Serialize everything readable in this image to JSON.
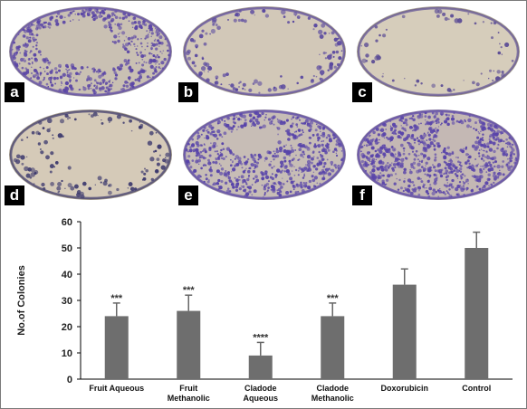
{
  "panels": [
    {
      "label": "a",
      "dish": "#c9c0b3",
      "rim": "#9c93a2",
      "stain": "#5b46a6",
      "density": 0.8,
      "clear": [
        [
          0.42,
          0.38,
          0.22,
          0.24
        ],
        [
          0.6,
          0.52,
          0.12,
          0.14
        ]
      ]
    },
    {
      "label": "b",
      "dish": "#d2c8b8",
      "rim": "#a79e93",
      "stain": "#5a49a0",
      "density": 0.35,
      "clear": [
        [
          0.5,
          0.45,
          0.34,
          0.3
        ]
      ]
    },
    {
      "label": "c",
      "dish": "#d6cdbb",
      "rim": "#aaa292",
      "stain": "#5d4e96",
      "density": 0.18,
      "clear": [
        [
          0.45,
          0.45,
          0.32,
          0.3
        ]
      ]
    },
    {
      "label": "d",
      "dish": "#d5cab8",
      "rim": "#a59c8c",
      "stain": "#3d3a6e",
      "density": 0.3,
      "clear": [
        [
          0.62,
          0.42,
          0.3,
          0.3
        ]
      ]
    },
    {
      "label": "e",
      "dish": "#c7bdb6",
      "rim": "#958aa4",
      "stain": "#5844aa",
      "density": 0.85,
      "clear": [
        [
          0.44,
          0.34,
          0.16,
          0.14
        ]
      ]
    },
    {
      "label": "f",
      "dish": "#c4b8b4",
      "rim": "#8f82a4",
      "stain": "#5a45aa",
      "density": 0.92,
      "clear": [
        [
          0.62,
          0.3,
          0.12,
          0.12
        ]
      ]
    }
  ],
  "chart_data": {
    "type": "bar",
    "categories": [
      [
        "Fruit Aqueous"
      ],
      [
        "Fruit",
        "Methanolic"
      ],
      [
        "Cladode",
        "Aqueous"
      ],
      [
        "Cladode",
        "Methanolic"
      ],
      [
        "Doxorubicin"
      ],
      [
        "Control"
      ]
    ],
    "values": [
      24,
      26,
      9,
      24,
      36,
      50
    ],
    "errors": [
      5,
      6,
      5,
      5,
      6,
      6
    ],
    "annotations": [
      "***",
      "***",
      "****",
      "***",
      "",
      ""
    ],
    "ylabel": "No.of Colonies",
    "ylim": [
      0,
      60
    ],
    "yticks": [
      0,
      10,
      20,
      30,
      40,
      50,
      60
    ],
    "grid": false,
    "bar_color": "#6e6e6e"
  }
}
